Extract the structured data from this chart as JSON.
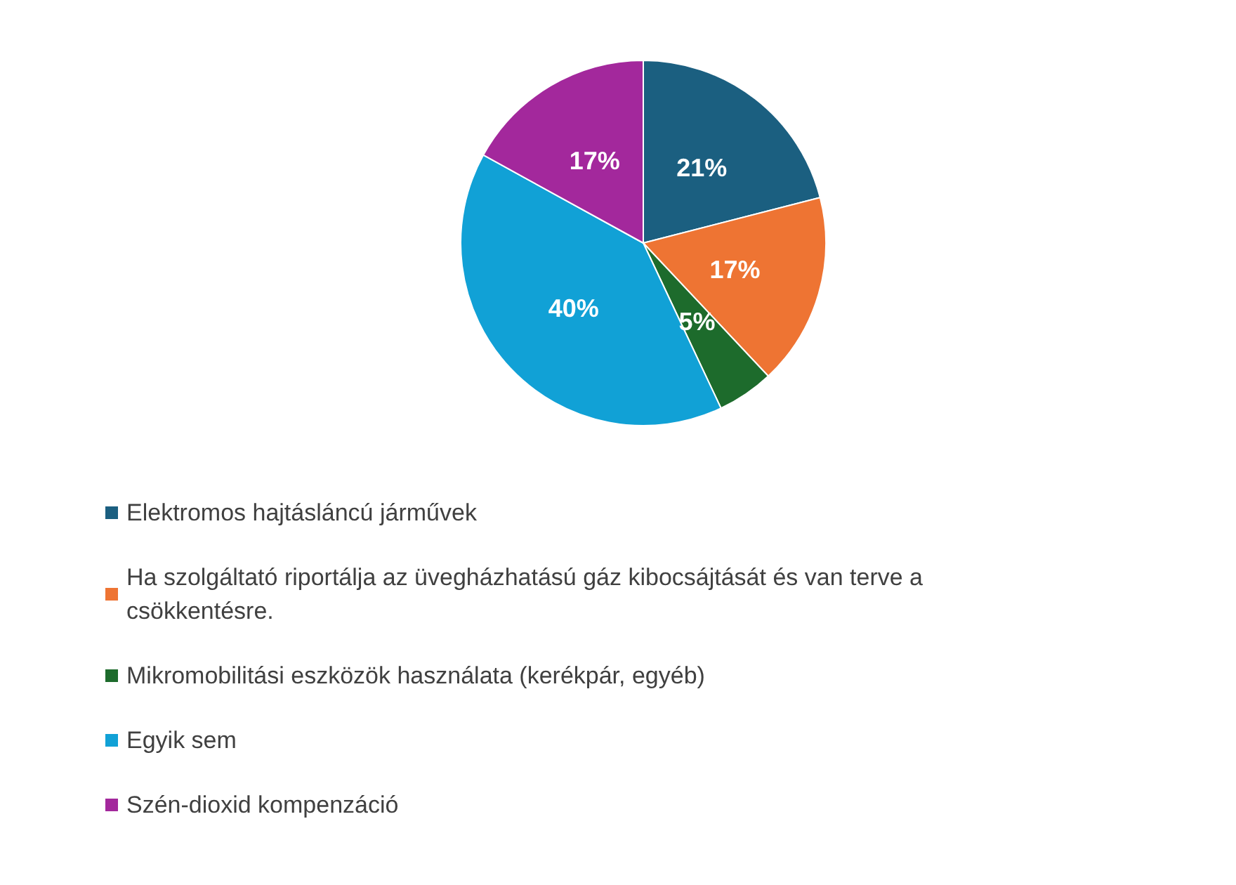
{
  "chart_data": {
    "type": "pie",
    "categories": [
      "Elektromos hajtásláncú járművek",
      "Ha szolgáltató riportálja az üvegházhatású gáz kibocsájtását és van terve a csökkentésre.",
      "Mikromobilitási eszközök használata (kerékpár, egyéb)",
      "Egyik sem",
      "Szén-dioxid kompenzáció"
    ],
    "values": [
      21,
      17,
      5,
      40,
      17
    ],
    "value_labels": [
      "21%",
      "17%",
      "5%",
      "40%",
      "17%"
    ],
    "colors": [
      "#1b5f80",
      "#ee7433",
      "#1d6b2c",
      "#11a1d6",
      "#a3289c"
    ],
    "legend": "bottom"
  }
}
